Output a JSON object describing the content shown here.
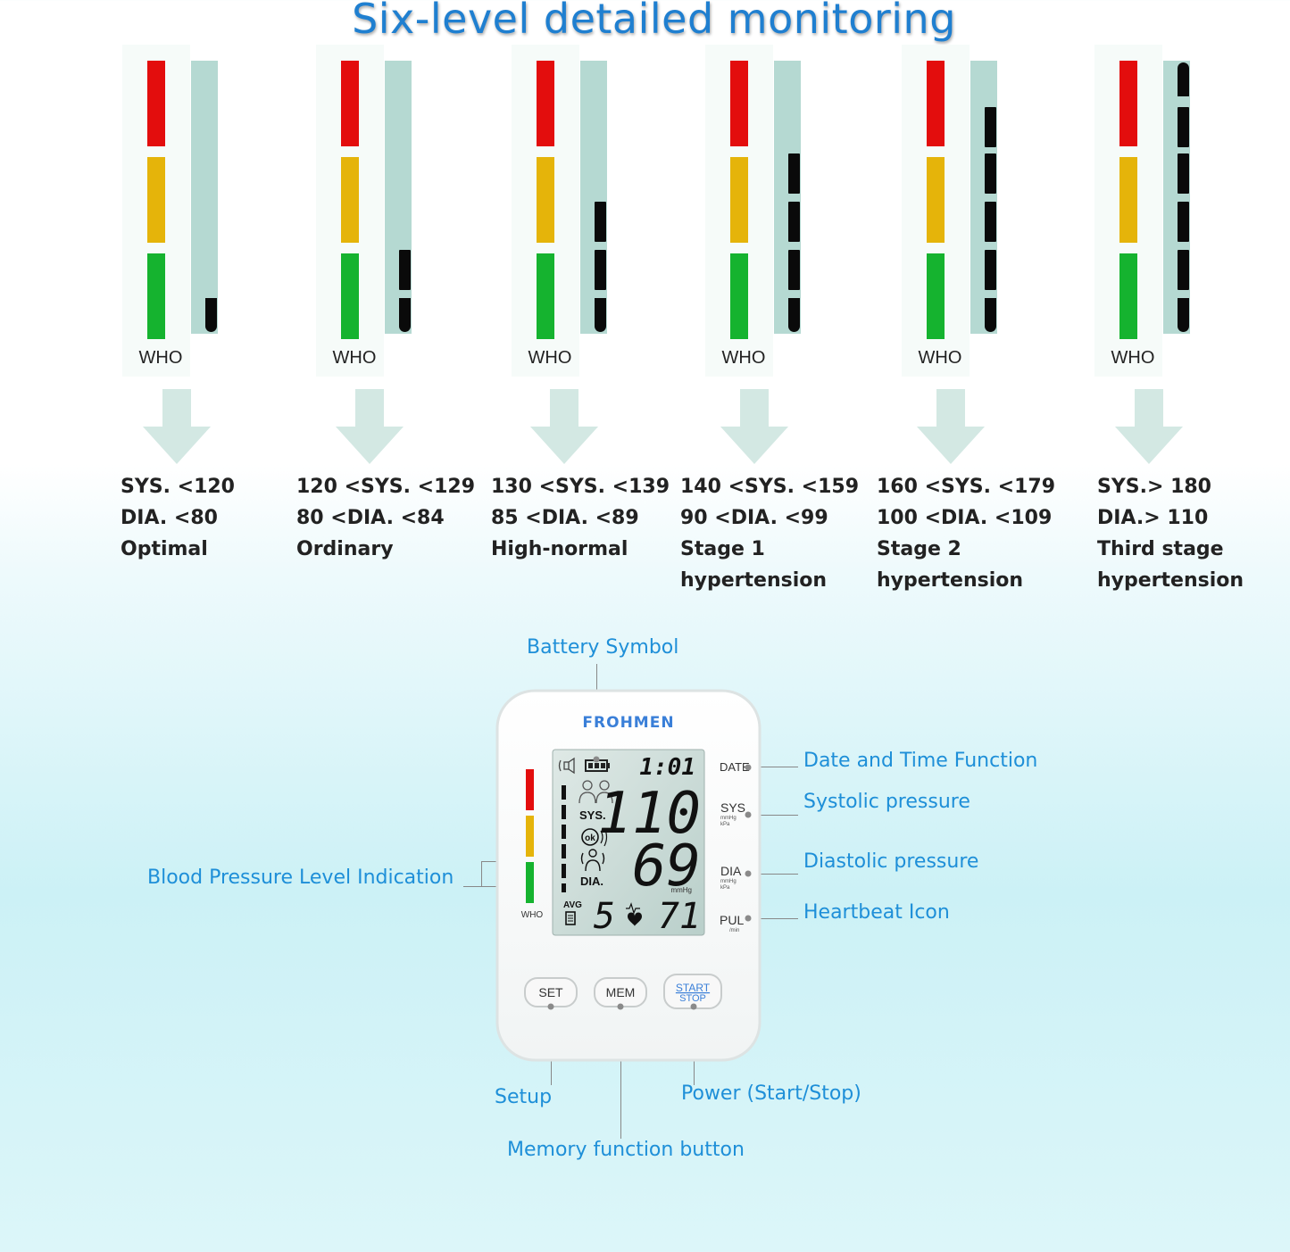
{
  "title": "Six-level detailed monitoring",
  "who_label": "WHO",
  "levels": [
    {
      "line1": "SYS. <120",
      "line2": "DIA. <80",
      "line3": "Optimal",
      "line4": "",
      "filled_segments": 1
    },
    {
      "line1": "120 <SYS. <129",
      "line2": "80 <DIA. <84",
      "line3": "Ordinary",
      "line4": "",
      "filled_segments": 2
    },
    {
      "line1": "130 <SYS. <139",
      "line2": "85 <DIA. <89",
      "line3": "High-normal",
      "line4": "",
      "filled_segments": 3
    },
    {
      "line1": "140 <SYS. <159",
      "line2": "90 <DIA. <99",
      "line3": "Stage 1",
      "line4": "hypertension",
      "filled_segments": 4
    },
    {
      "line1": "160 <SYS. <179",
      "line2": "100 <DIA. <109",
      "line3": "Stage 2",
      "line4": "hypertension",
      "filled_segments": 5
    },
    {
      "line1": "SYS.> 180",
      "line2": "DIA.> 110",
      "line3": "Third stage",
      "line4": "hypertension",
      "filled_segments": 6
    }
  ],
  "colors": {
    "title": "#1f7fd0",
    "callout": "#1e8fd8",
    "red": "#e30d0d",
    "yellow": "#e5b40a",
    "green": "#15b32f",
    "gauge": "#b5d9d2",
    "arrow": "#d3e8e3"
  },
  "device": {
    "brand": "FROHMEN",
    "time": "1:01",
    "sys_value": "110",
    "dia_value": "69",
    "pulse_value": "71",
    "memory_user": "5",
    "lcd_sys": "SYS.",
    "lcd_dia": "DIA.",
    "lcd_avg": "AVG",
    "lcd_ok": "ok",
    "lcd_mmhg": "mmHg",
    "side_who": "WHO",
    "label_date": "DATE",
    "label_sys": "SYS",
    "label_dia": "DIA",
    "label_pul": "PUL",
    "unit_mmhg": "mmHg",
    "unit_kpa": "kPa",
    "unit_min": "/min",
    "btn_set": "SET",
    "btn_mem": "MEM",
    "btn_start": "START",
    "btn_stop": "STOP"
  },
  "callouts": {
    "battery": "Battery Symbol",
    "date_time": "Date and Time Function",
    "systolic": "Systolic pressure",
    "diastolic": "Diastolic pressure",
    "heartbeat": "Heartbeat Icon",
    "bp_level": "Blood Pressure Level Indication",
    "setup": "Setup",
    "power": "Power (Start/Stop)",
    "memory": "Memory function button"
  }
}
